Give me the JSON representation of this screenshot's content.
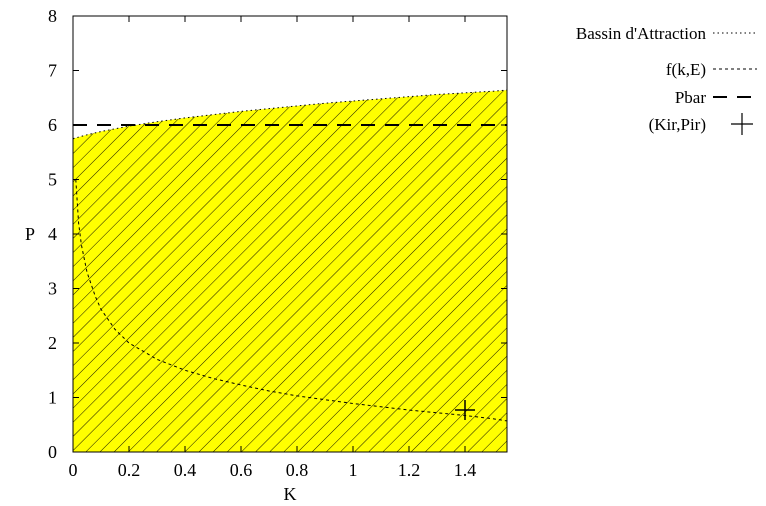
{
  "chart_data": {
    "type": "area",
    "xlabel": "K",
    "ylabel": "P",
    "xlim": [
      0,
      1.55
    ],
    "ylim": [
      0,
      8
    ],
    "x_ticks": [
      "0",
      "0.2",
      "0.4",
      "0.6",
      "0.8",
      "1",
      "1.2",
      "1.4"
    ],
    "x_tick_values": [
      0,
      0.2,
      0.4,
      0.6,
      0.8,
      1.0,
      1.2,
      1.4
    ],
    "y_ticks": [
      "0",
      "1",
      "2",
      "3",
      "4",
      "5",
      "6",
      "7",
      "8"
    ],
    "y_tick_values": [
      0,
      1,
      2,
      3,
      4,
      5,
      6,
      7,
      8
    ],
    "grid": false,
    "legend_position": "right",
    "colors": {
      "fill": "#ffff00",
      "hatch": "#000000",
      "line": "#000000"
    },
    "series": [
      {
        "name": "Bassin d'Attraction",
        "style": "dotted",
        "kind": "filled-area",
        "x": [
          0,
          0.05,
          0.1,
          0.2,
          0.3,
          0.4,
          0.5,
          0.6,
          0.7,
          0.8,
          0.9,
          1.0,
          1.1,
          1.2,
          1.3,
          1.4,
          1.5,
          1.55
        ],
        "y": [
          5.75,
          5.82,
          5.88,
          5.98,
          6.06,
          6.13,
          6.19,
          6.25,
          6.3,
          6.35,
          6.4,
          6.44,
          6.48,
          6.52,
          6.56,
          6.59,
          6.62,
          6.64
        ]
      },
      {
        "name": "f(k,E)",
        "style": "dashed-fine",
        "kind": "line",
        "x": [
          0.01,
          0.02,
          0.03,
          0.05,
          0.08,
          0.1,
          0.15,
          0.2,
          0.3,
          0.4,
          0.5,
          0.6,
          0.7,
          0.8,
          0.9,
          1.0,
          1.1,
          1.2,
          1.3,
          1.4,
          1.5,
          1.55
        ],
        "y": [
          5.0,
          4.2,
          3.8,
          3.3,
          2.85,
          2.62,
          2.25,
          2.0,
          1.7,
          1.5,
          1.35,
          1.23,
          1.12,
          1.03,
          0.96,
          0.89,
          0.83,
          0.77,
          0.72,
          0.67,
          0.61,
          0.57
        ]
      },
      {
        "name": "Pbar",
        "style": "dashed-long",
        "kind": "line",
        "x": [
          0,
          1.55
        ],
        "y": [
          6.0,
          6.0
        ]
      },
      {
        "name": "(Kir,Pir)",
        "style": "point-plus",
        "kind": "point",
        "x": [
          1.4
        ],
        "y": [
          0.77
        ]
      }
    ]
  }
}
